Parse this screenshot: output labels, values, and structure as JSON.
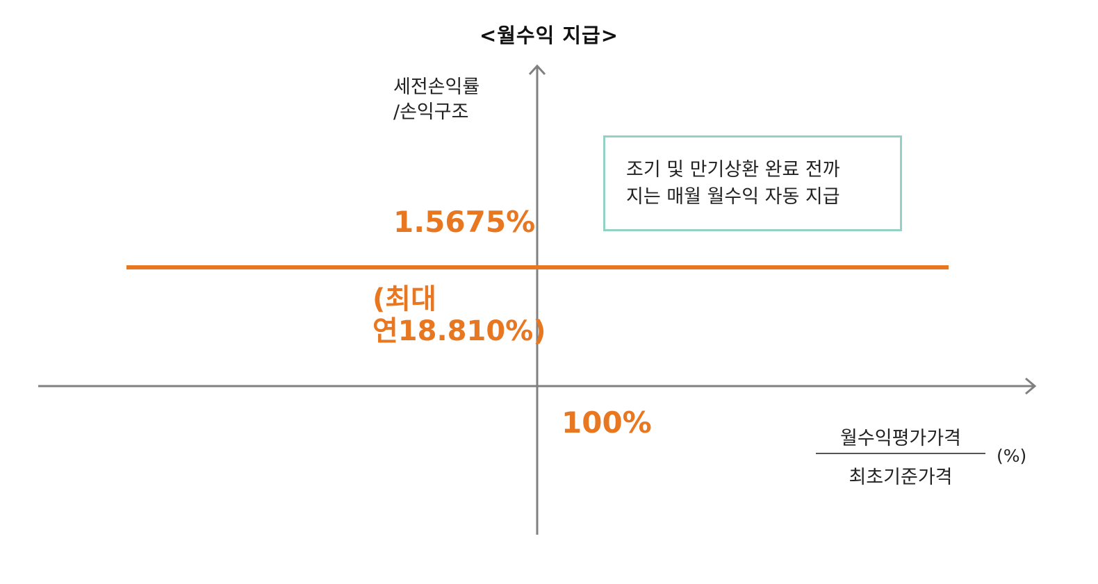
{
  "title": "<월수익 지급>",
  "y_axis": {
    "line1": "세전손익률",
    "line2": "/손익구조"
  },
  "note": {
    "line1": "조기 및 만기상환 완료 전까",
    "line2": "지는 매월 월수익 자동 지급"
  },
  "level_label": "1.5675%",
  "annual_label": {
    "line1": "(최대",
    "line2": "연18.810%)"
  },
  "x_label": "100%",
  "x_axis": {
    "numerator": "월수익평가가격",
    "denominator": "최초기준가격",
    "unit": "(%)"
  },
  "colors": {
    "payoff": "#e87722",
    "axis": "#808080",
    "note_border": "#93d1c4"
  }
}
